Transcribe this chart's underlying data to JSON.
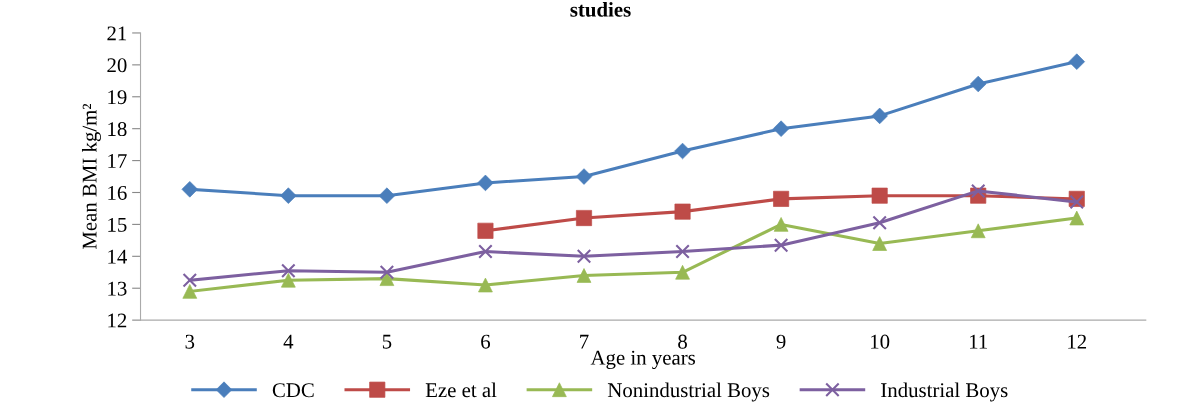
{
  "chart_data": {
    "type": "line",
    "title": "studies",
    "xlabel": "Age in years",
    "ylabel": "Mean BMI kg/m²",
    "categories": [
      "3",
      "4",
      "5",
      "6",
      "7",
      "8",
      "9",
      "10",
      "11",
      "12"
    ],
    "series": [
      {
        "name": "CDC",
        "color": "#4a7ebb",
        "marker": "diamond",
        "values": [
          16.1,
          15.9,
          15.9,
          16.3,
          16.5,
          17.3,
          18.0,
          18.4,
          19.4,
          20.1
        ]
      },
      {
        "name": "Eze et al",
        "color": "#be4b48",
        "marker": "square",
        "values": [
          null,
          null,
          null,
          14.8,
          15.2,
          15.4,
          15.8,
          15.9,
          15.9,
          15.8
        ]
      },
      {
        "name": "Nonindustrial Boys",
        "color": "#98b954",
        "marker": "triangle",
        "values": [
          12.9,
          13.25,
          13.3,
          13.1,
          13.4,
          13.5,
          15.0,
          14.4,
          14.8,
          15.2
        ]
      },
      {
        "name": "Industrial Boys",
        "color": "#7d60a0",
        "marker": "cross",
        "values": [
          13.25,
          13.55,
          13.5,
          14.15,
          14.0,
          14.15,
          14.35,
          15.05,
          16.05,
          15.7
        ]
      }
    ],
    "ylim": [
      12,
      21
    ],
    "yticks": [
      12,
      13,
      14,
      15,
      16,
      17,
      18,
      19,
      20,
      21
    ],
    "grid": false,
    "legend": "bottom",
    "line_style": "solid"
  }
}
